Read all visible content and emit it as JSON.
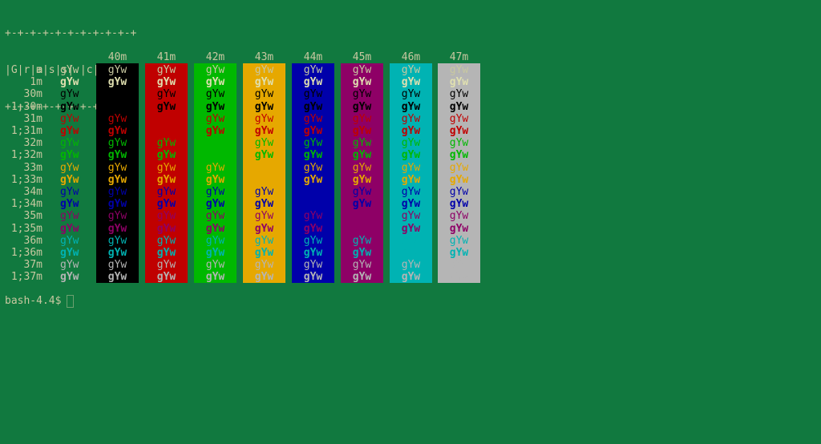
{
  "banner": [
    "+-+-+-+-+-+-+-+-+-+-+",
    "|G|r|a|s|s|.|c|o|n|f|",
    "+-+-+-+-+-+-+-+-+-+-+"
  ],
  "sample_text": "gYw",
  "bg_headers": [
    "40m",
    "41m",
    "42m",
    "43m",
    "44m",
    "45m",
    "46m",
    "47m"
  ],
  "bg_colors": [
    "#000000",
    "#c00000",
    "#00b800",
    "#e6a800",
    "#0000aa",
    "#8e0066",
    "#00b3b3",
    "#b5b5b5"
  ],
  "rows": [
    {
      "label": "m",
      "color": "#c8c8a0",
      "bold": false
    },
    {
      "label": "1m",
      "color": "#e0e0b0",
      "bold": true
    },
    {
      "label": "30m",
      "color": "#000000",
      "bold": false
    },
    {
      "label": "1;30m",
      "color": "#000000",
      "bold": true
    },
    {
      "label": "31m",
      "color": "#c00000",
      "bold": false
    },
    {
      "label": "1;31m",
      "color": "#c00000",
      "bold": true
    },
    {
      "label": "32m",
      "color": "#00b800",
      "bold": false
    },
    {
      "label": "1;32m",
      "color": "#00b800",
      "bold": true
    },
    {
      "label": "33m",
      "color": "#e6a800",
      "bold": false
    },
    {
      "label": "1;33m",
      "color": "#e6a800",
      "bold": true
    },
    {
      "label": "34m",
      "color": "#0000aa",
      "bold": false
    },
    {
      "label": "1;34m",
      "color": "#0000aa",
      "bold": true
    },
    {
      "label": "35m",
      "color": "#8e0066",
      "bold": false
    },
    {
      "label": "1;35m",
      "color": "#8e0066",
      "bold": true
    },
    {
      "label": "36m",
      "color": "#00b3b3",
      "bold": false
    },
    {
      "label": "1;36m",
      "color": "#00b3b3",
      "bold": true
    },
    {
      "label": "37m",
      "color": "#b5b5b5",
      "bold": false
    },
    {
      "label": "1;37m",
      "color": "#b5b5b5",
      "bold": true
    }
  ],
  "prompt": "bash-4.4$"
}
